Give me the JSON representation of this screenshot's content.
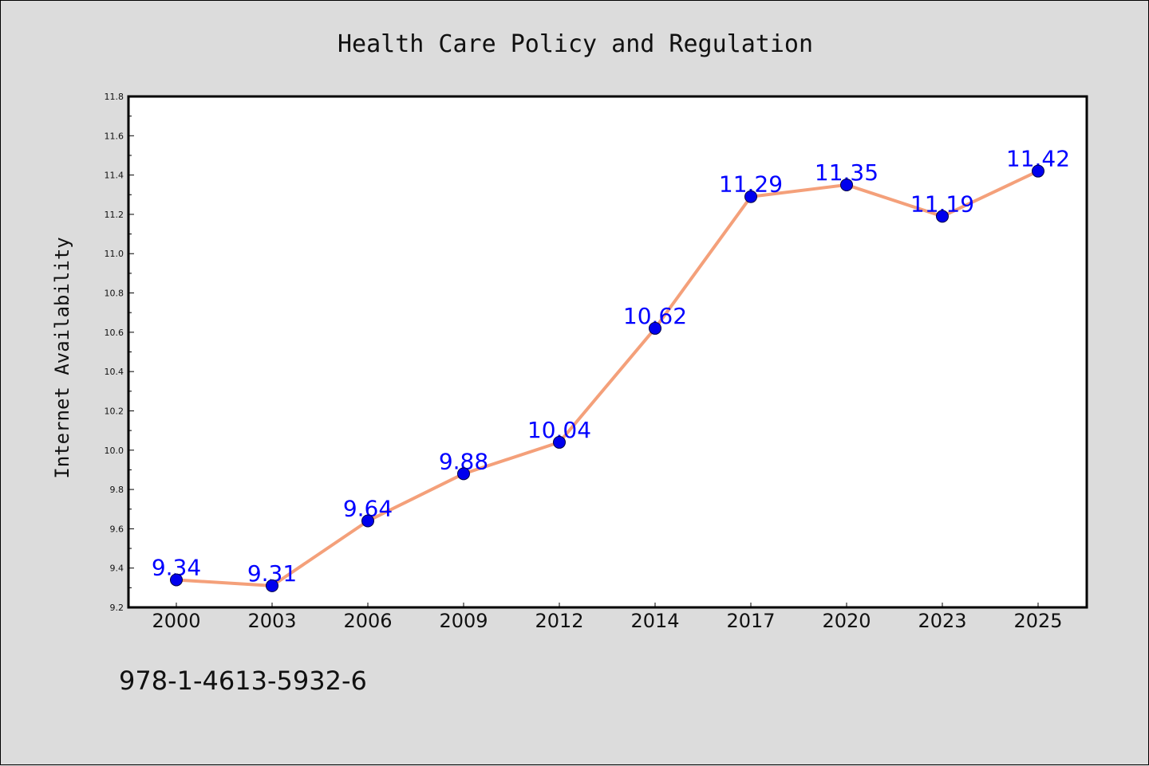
{
  "chart_data": {
    "type": "line",
    "title": "Health Care Policy and Regulation",
    "xlabel": "",
    "ylabel": "Internet Availability",
    "categories": [
      "2000",
      "2003",
      "2006",
      "2009",
      "2012",
      "2014",
      "2017",
      "2020",
      "2023",
      "2025"
    ],
    "values": [
      9.34,
      9.31,
      9.64,
      9.88,
      10.04,
      10.62,
      11.29,
      11.35,
      11.19,
      11.42
    ],
    "data_labels": [
      "9.34",
      "9.31",
      "9.64",
      "9.88",
      "10.04",
      "10.62",
      "11.29",
      "11.35",
      "11.19",
      "11.42"
    ],
    "ylim": [
      9.2,
      11.8
    ],
    "yticks": [
      "9.2",
      "9.4",
      "9.6",
      "9.8",
      "10.0",
      "10.2",
      "10.4",
      "10.6",
      "10.8",
      "11.0",
      "11.2",
      "11.4",
      "11.6",
      "11.8"
    ],
    "grid": false,
    "legend": "none",
    "colors": {
      "line": "#f4a07a",
      "marker": "#0000ee",
      "label": "#0000ff",
      "background": "#dcdcdc",
      "plot_background": "#ffffff"
    }
  },
  "footer": {
    "isbn": "978-1-4613-5932-6"
  }
}
